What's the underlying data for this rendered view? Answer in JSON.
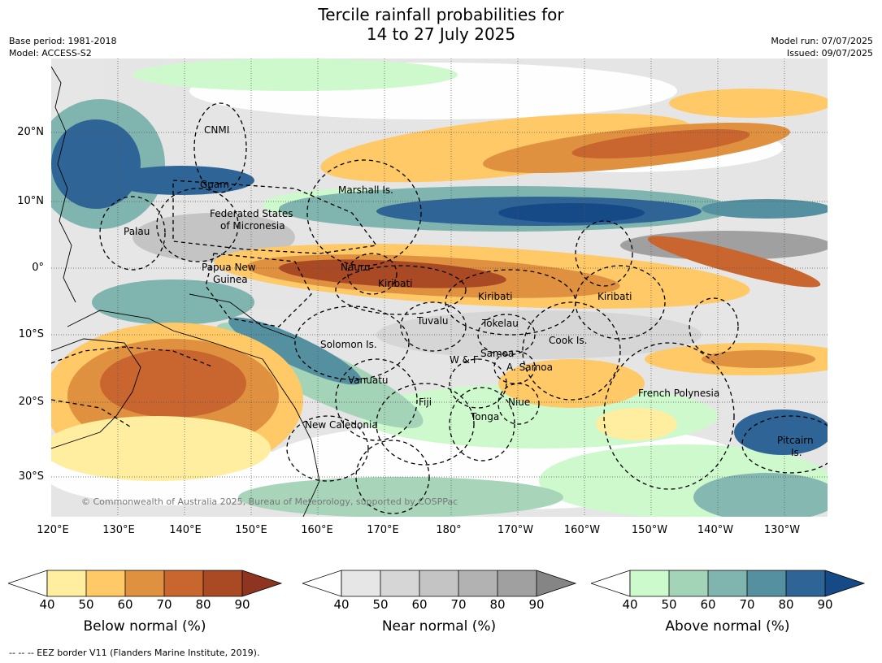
{
  "title_line1": "Tercile rainfall probabilities for",
  "title_line2": "14 to 27 July 2025",
  "meta": {
    "base_period": "Base period: 1981-2018",
    "model": "Model: ACCESS-S2",
    "model_run": "Model run: 07/07/2025",
    "issued": "Issued: 09/07/2025"
  },
  "lat_labels": [
    "20°N",
    "10°N",
    "0°",
    "10°S",
    "20°S",
    "30°S"
  ],
  "lon_labels": [
    "120°E",
    "130°E",
    "140°E",
    "150°E",
    "160°E",
    "170°E",
    "180°",
    "170°W",
    "160°W",
    "150°W",
    "140°W",
    "130°W"
  ],
  "places": {
    "cnmi": "CNMI",
    "guam": "Guam",
    "marshall": "Marshall Is.",
    "fsm_1": "Federated States",
    "fsm_2": "of Micronesia",
    "palau": "Palau",
    "png_1": "Papua New",
    "png_2": "Guinea",
    "nauru": "Nauru",
    "kiribati_w": "Kiribati",
    "kiribati_c": "Kiribati",
    "kiribati_e": "Kiribati",
    "tuvalu": "Tuvalu",
    "tokelau": "Tokelau",
    "cook": "Cook Is.",
    "solomon": "Solomon Is.",
    "wf": "W & F",
    "samoa": "Samoa",
    "asamoa": "A. Samoa",
    "vanuatu": "Vanuatu",
    "fiji": "Fiji",
    "niue": "Niue",
    "tonga": "Tonga",
    "french_polynesia": "French Polynesia",
    "newcal": "New Caledonia",
    "pitcairn_1": "Pitcairn",
    "pitcairn_2": "Is."
  },
  "copyright": "© Commonwealth of Australia 2025, Bureau of Meteorology, supported by COSPPac",
  "colorbars": [
    {
      "label": "Below normal (%)",
      "colors": [
        "#ffeda0",
        "#fec966",
        "#e0913f",
        "#c96630",
        "#aa4a24",
        "#8e3420"
      ]
    },
    {
      "label": "Near normal (%)",
      "colors": [
        "#e6e6e6",
        "#d6d6d6",
        "#c4c4c4",
        "#b2b2b2",
        "#a0a0a0",
        "#858585"
      ]
    },
    {
      "label": "Above normal (%)",
      "colors": [
        "#ccfacc",
        "#a4d4b8",
        "#7fb5ae",
        "#5590a0",
        "#2f6496",
        "#154a86"
      ]
    }
  ],
  "cbar_ticks": [
    "40",
    "50",
    "60",
    "70",
    "80",
    "90"
  ],
  "footer": "-- -- -- EEZ border V11 (Flanders Marine Institute, 2019)."
}
